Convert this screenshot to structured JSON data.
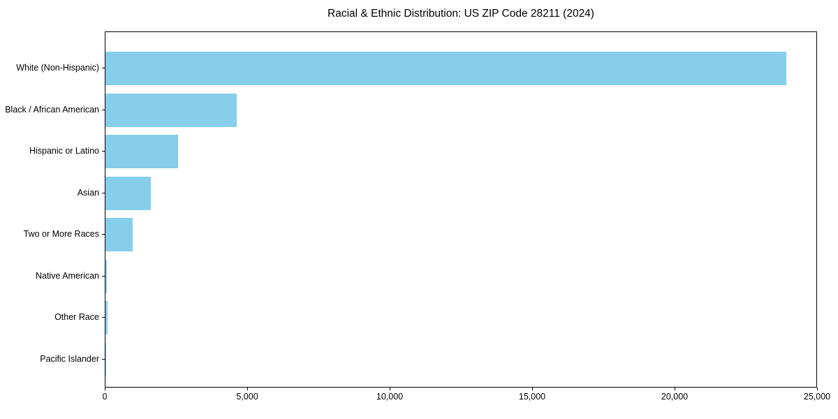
{
  "chart_data": {
    "type": "bar",
    "orientation": "horizontal",
    "title": "Racial & Ethnic Distribution: US ZIP Code 28211 (2024)",
    "xlabel": "",
    "ylabel": "",
    "categories": [
      "White (Non-Hispanic)",
      "Black / African American",
      "Hispanic or Latino",
      "Asian",
      "Two or More Races",
      "Native American",
      "Other Race",
      "Pacific Islander"
    ],
    "values": [
      23900,
      4600,
      2550,
      1590,
      960,
      55,
      80,
      10
    ],
    "xlim": [
      0,
      25000
    ],
    "xticks": [
      0,
      5000,
      10000,
      15000,
      20000,
      25000
    ],
    "xtick_labels": [
      "0",
      "5,000",
      "10,000",
      "15,000",
      "20,000",
      "25,000"
    ],
    "bar_color": "#87CEEB",
    "axis_color": "#000000",
    "grid": false,
    "legend": null
  }
}
